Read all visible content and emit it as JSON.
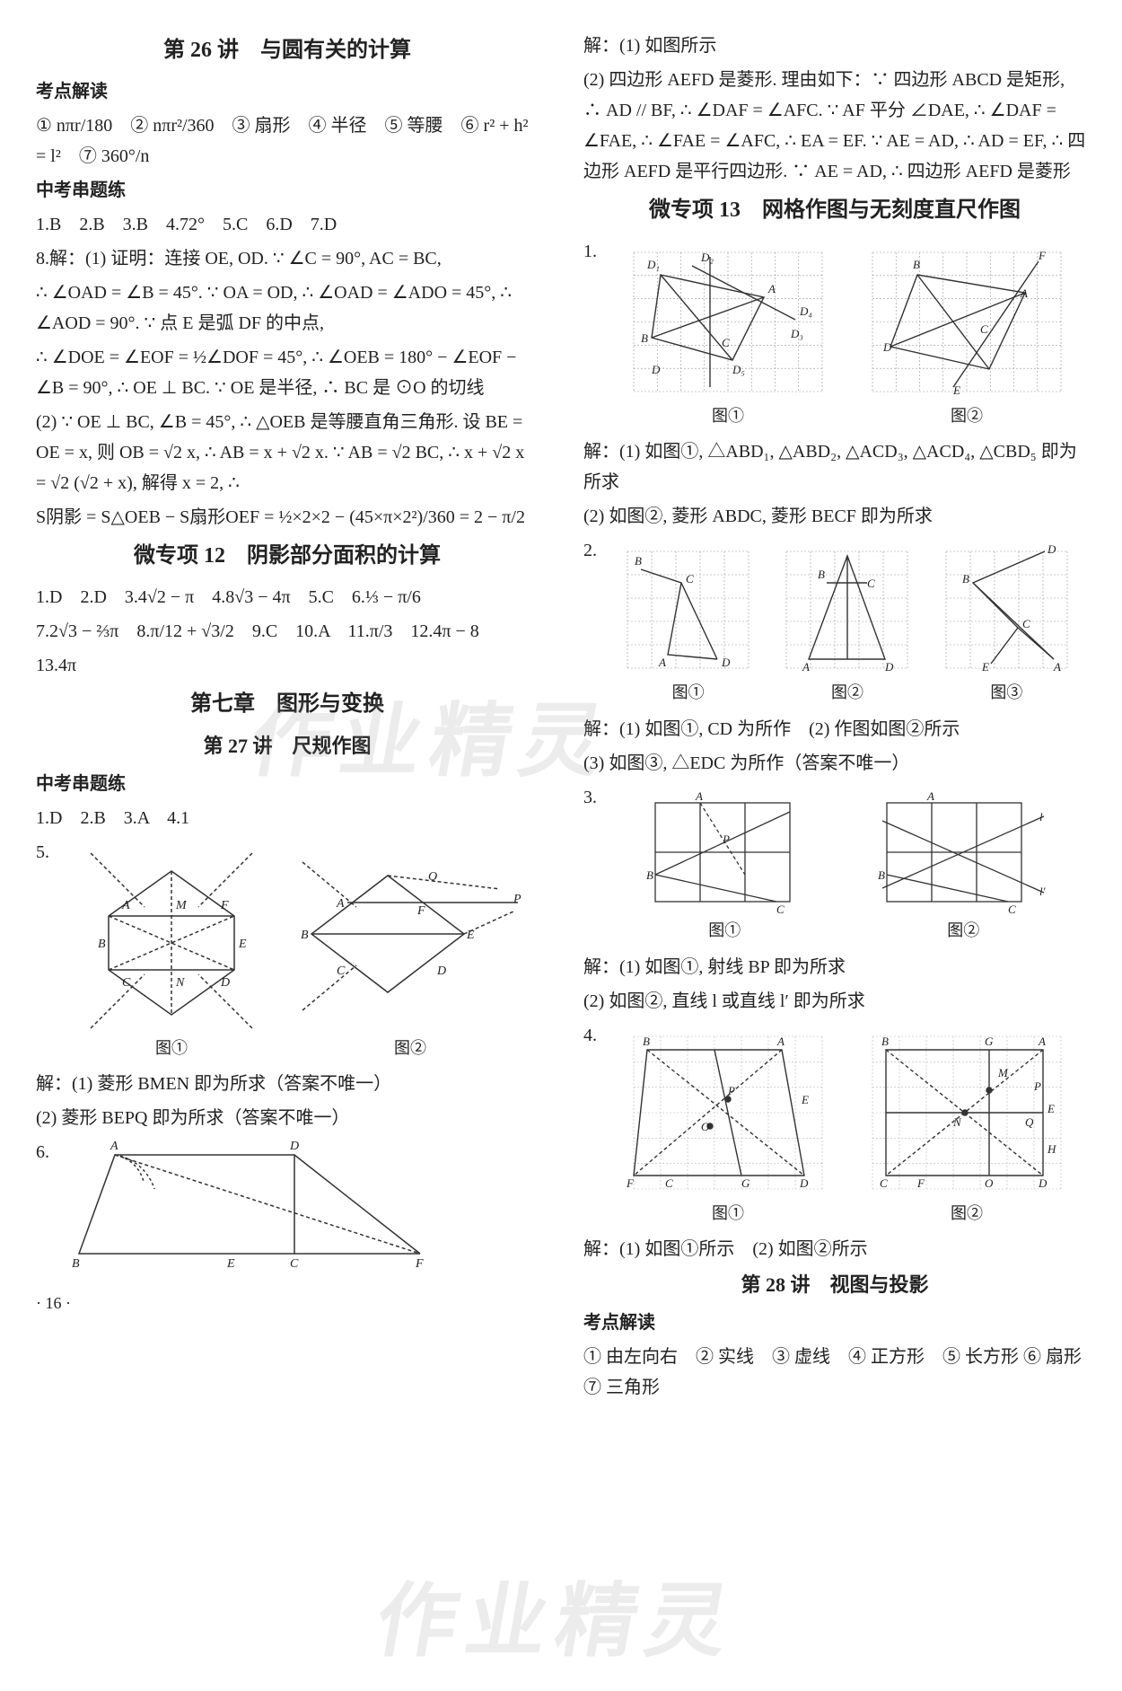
{
  "left": {
    "lec26_title": "第 26 讲　与圆有关的计算",
    "kaodian": "考点解读",
    "kaodian_items": "① nπr/180　② nπr²/360　③ 扇形　④ 半径　⑤ 等腰　⑥ r² + h² = l²　⑦ 360°/n",
    "zkct": "中考串题练",
    "ans1": "1.B　2.B　3.B　4.72°　5.C　6.D　7.D",
    "p8a": "8.解：(1) 证明：连接 OE, OD. ∵ ∠C = 90°, AC = BC,",
    "p8b": "∴ ∠OAD = ∠B = 45°. ∵ OA = OD, ∴ ∠OAD = ∠ADO = 45°, ∴ ∠AOD = 90°. ∵ 点 E 是弧 DF 的中点,",
    "p8c": "∴ ∠DOE = ∠EOF = ½∠DOF = 45°, ∴ ∠OEB = 180° − ∠EOF − ∠B = 90°, ∴ OE ⊥ BC. ∵ OE 是半径, ∴ BC 是 ⊙O 的切线",
    "p8d": "(2) ∵ OE ⊥ BC, ∠B = 45°, ∴ △OEB 是等腰直角三角形. 设 BE = OE = x, 则 OB = √2 x, ∴ AB = x + √2 x. ∵ AB = √2 BC, ∴ x + √2 x = √2 (√2 + x), 解得 x = 2, ∴",
    "p8e": "S阴影 = S△OEB − S扇形OEF = ½×2×2 − (45×π×2²)/360 = 2 − π/2",
    "wz12_title": "微专项 12　阴影部分面积的计算",
    "wz12_ans1": "1.D　2.D　3.4√2 − π　4.8√3 − 4π　5.C　6.⅓ − π/6",
    "wz12_ans2": "7.2√3 − ⅔π　8.π/12 + √3/2　9.C　10.A　11.π/3　12.4π − 8",
    "wz12_ans3": "13.4π",
    "ch7_title": "第七章　图形与变换",
    "lec27_title": "第 27 讲　尺规作图",
    "zkct2": "中考串题练",
    "ans27": "1.D　2.B　3.A　4.1",
    "fig5_cap1": "图①",
    "fig5_cap2": "图②",
    "p5num": "5.",
    "p5a": "解：(1) 菱形 BMEN 即为所求（答案不唯一）",
    "p5b": "(2) 菱形 BEPQ 即为所求（答案不唯一）",
    "p6num": "6.",
    "pagefoot": "· 16 ·"
  },
  "right": {
    "r_top": "解：(1) 如图所示",
    "r_p2": "(2) 四边形 AEFD 是菱形. 理由如下：∵ 四边形 ABCD 是矩形, ∴ AD // BF, ∴ ∠DAF = ∠AFC. ∵ AF 平分 ∠DAE, ∴ ∠DAF = ∠FAE, ∴ ∠FAE = ∠AFC, ∴ EA = EF. ∵ AE = AD, ∴ AD = EF, ∴ 四边形 AEFD 是平行四边形. ∵ AE = AD, ∴ 四边形 AEFD 是菱形",
    "wz13_title": "微专项 13　网格作图与无刻度直尺作图",
    "q1num": "1.",
    "fig1_cap1": "图①",
    "fig1_cap2": "图②",
    "q1_sol": "解：(1) 如图①, △ABD₁, △ABD₂, △ACD₃, △ACD₄, △CBD₅ 即为所求",
    "q1_sol2": "(2) 如图②, 菱形 ABDC, 菱形 BECF 即为所求",
    "q2num": "2.",
    "fig2_cap1": "图①",
    "fig2_cap2": "图②",
    "fig2_cap3": "图③",
    "q2_sol": "解：(1) 如图①, CD 为所作　(2) 作图如图②所示",
    "q2_sol2": "(3) 如图③, △EDC 为所作（答案不唯一）",
    "q3num": "3.",
    "fig3_cap1": "图①",
    "fig3_cap2": "图②",
    "q3_sol": "解：(1) 如图①, 射线 BP 即为所求",
    "q3_sol2": "(2) 如图②, 直线 l 或直线 l′ 即为所求",
    "q4num": "4.",
    "fig4_cap1": "图①",
    "fig4_cap2": "图②",
    "q4_sol": "解：(1) 如图①所示　(2) 如图②所示",
    "lec28_title": "第 28 讲　视图与投影",
    "kaodian28": "考点解读",
    "kd28_items": "① 由左向右　② 实线　③ 虚线　④ 正方形　⑤ 长方形 ⑥ 扇形　⑦ 三角形"
  },
  "watermark": "作业精灵",
  "fig_stroke": "#333333",
  "grid_color": "#777777",
  "dash_color": "#666666"
}
